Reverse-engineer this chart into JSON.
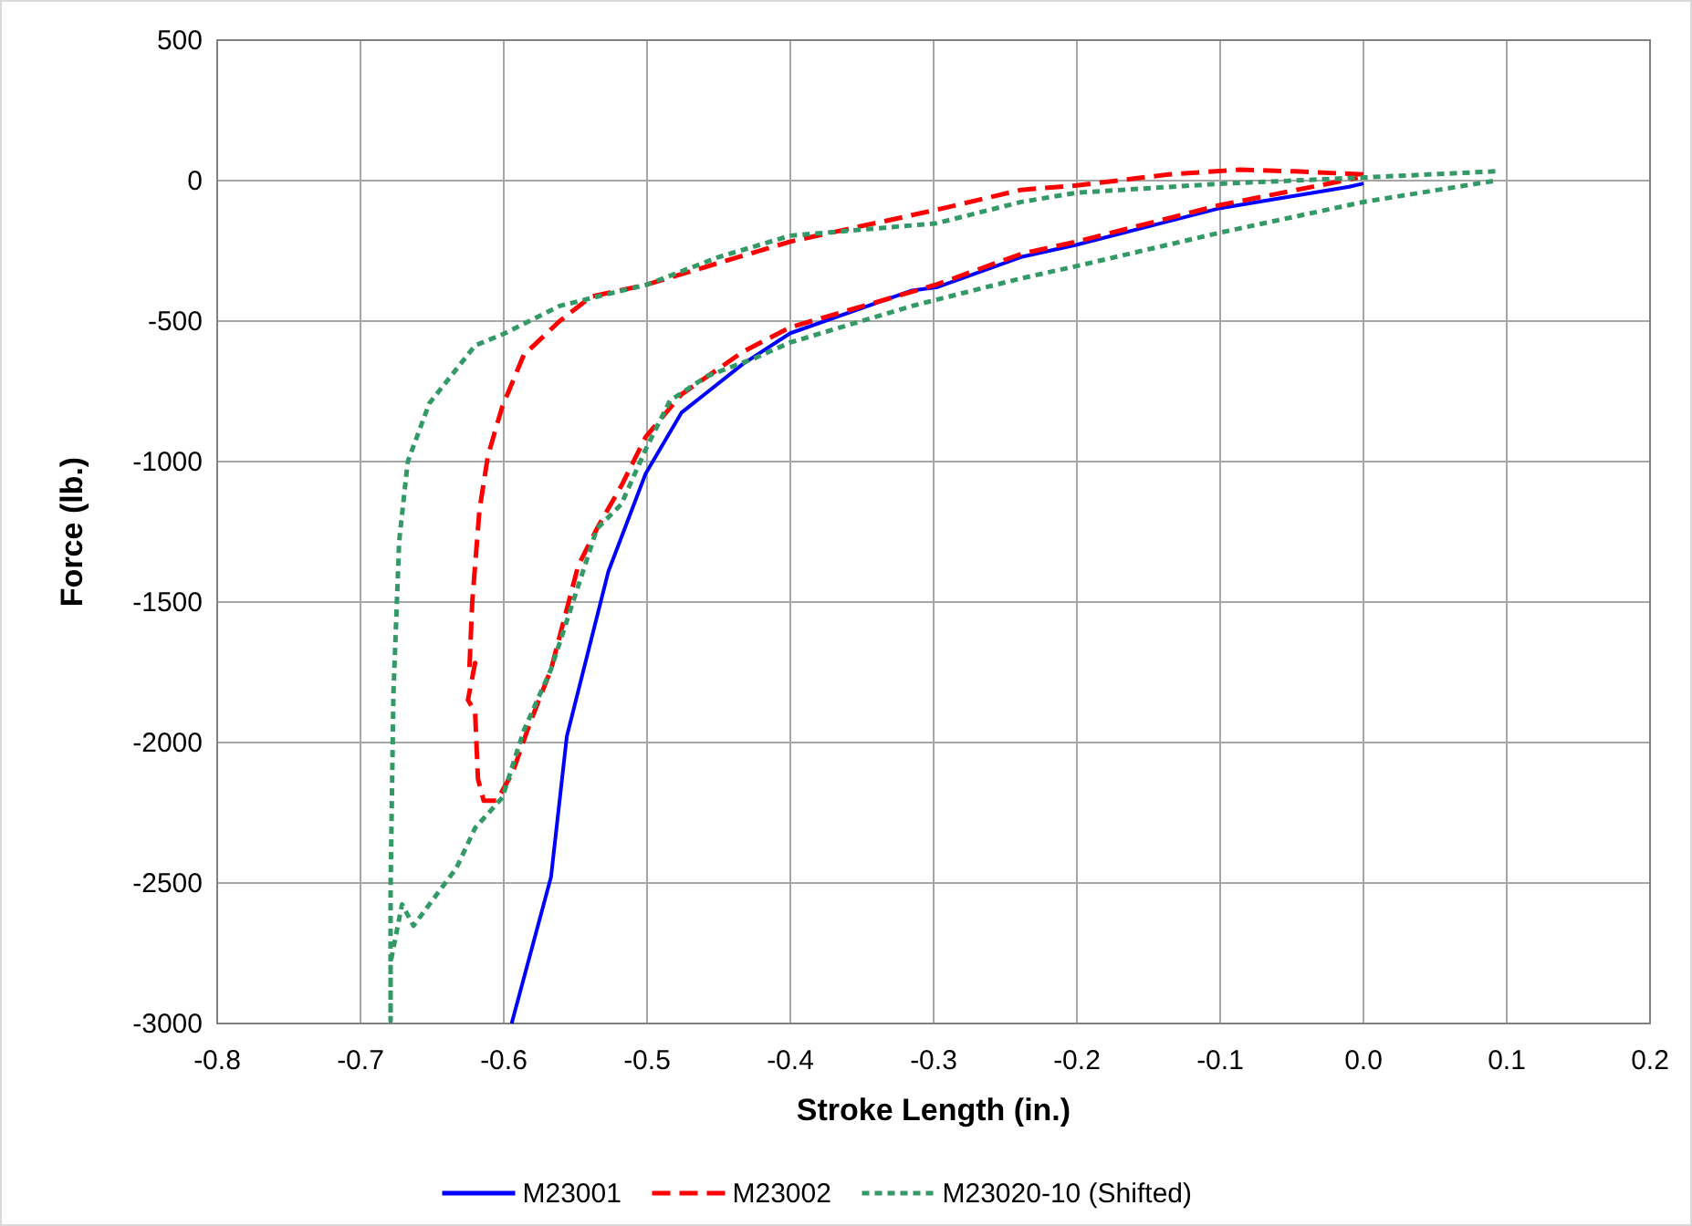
{
  "chart_data": {
    "type": "line",
    "xlabel": "Stroke Length (in.)",
    "ylabel": "Force (lb.)",
    "xlim": [
      -0.8,
      0.2
    ],
    "xticks": [
      {
        "value": -0.8,
        "label": "-0.8"
      },
      {
        "value": -0.7,
        "label": "-0.7"
      },
      {
        "value": -0.6,
        "label": "-0.6"
      },
      {
        "value": -0.5,
        "label": "-0.5"
      },
      {
        "value": -0.4,
        "label": "-0.4"
      },
      {
        "value": -0.3,
        "label": "-0.3"
      },
      {
        "value": -0.2,
        "label": "-0.2"
      },
      {
        "value": -0.1,
        "label": "-0.1"
      },
      {
        "value": 0,
        "label": "0.0"
      },
      {
        "value": 0.1,
        "label": "0.1"
      },
      {
        "value": 0.2,
        "label": "0.2"
      }
    ],
    "ylim": [
      -3000,
      500
    ],
    "yticks": [
      -3000,
      -2500,
      -2000,
      -1500,
      -1000,
      -500,
      0,
      500
    ],
    "grid": true,
    "legend": "bottom",
    "series": [
      {
        "name": "M23001",
        "color": "#0000ff",
        "line_style": "solid",
        "x": [
          -0.5945,
          -0.567,
          -0.556,
          -0.527,
          -0.501,
          -0.476,
          -0.433,
          -0.4,
          -0.315,
          -0.298,
          -0.239,
          -0.2,
          -0.1,
          -0.01,
          0
        ],
        "values": [
          -3000,
          -2478,
          -1978,
          -1391,
          -1043,
          -826,
          -652,
          -543,
          -391,
          -380,
          -272,
          -228,
          -98,
          -22,
          -10
        ]
      },
      {
        "name": "M23002",
        "color": "#ff0000",
        "line_style": "dashed",
        "x": [
          0,
          -0.048,
          -0.086,
          -0.136,
          -0.2,
          -0.239,
          -0.298,
          -0.4,
          -0.45,
          -0.5,
          -0.539,
          -0.561,
          -0.586,
          -0.601,
          -0.611,
          -0.617,
          -0.622,
          -0.624,
          -0.62,
          -0.625,
          -0.62,
          -0.618,
          -0.614,
          -0.605,
          -0.594,
          -0.582,
          -0.567,
          -0.548,
          -0.535,
          -0.518,
          -0.501,
          -0.476,
          -0.433,
          -0.4,
          -0.349,
          -0.298,
          -0.239,
          -0.2,
          -0.1,
          -0.004
        ],
        "values": [
          22,
          33,
          39,
          22,
          -17,
          -33,
          -104,
          -217,
          -293,
          -370,
          -413,
          -500,
          -620,
          -804,
          -978,
          -1174,
          -1500,
          -1739,
          -1717,
          -1848,
          -1891,
          -2130,
          -2207,
          -2207,
          -2109,
          -1935,
          -1739,
          -1370,
          -1239,
          -1087,
          -913,
          -761,
          -609,
          -522,
          -446,
          -370,
          -261,
          -217,
          -87,
          10
        ]
      },
      {
        "name": "M23020-10 (Shifted)",
        "color": "#339966",
        "line_style": "dotted",
        "x": [
          0.092,
          0,
          -0.1,
          -0.2,
          -0.239,
          -0.298,
          -0.4,
          -0.45,
          -0.5,
          -0.526,
          -0.561,
          -0.599,
          -0.62,
          -0.652,
          -0.667,
          -0.673,
          -0.677,
          -0.679,
          -0.679,
          -0.679,
          -0.671,
          -0.663,
          -0.633,
          -0.62,
          -0.601,
          -0.586,
          -0.567,
          -0.535,
          -0.518,
          -0.501,
          -0.484,
          -0.458,
          -0.424,
          -0.4,
          -0.315,
          -0.298,
          -0.239,
          -0.2,
          -0.1,
          0,
          0.092
        ],
        "values": [
          33,
          11,
          -11,
          -43,
          -76,
          -152,
          -196,
          -272,
          -370,
          -402,
          -446,
          -543,
          -587,
          -793,
          -1000,
          -1283,
          -1826,
          -2522,
          -2990,
          -2783,
          -2576,
          -2652,
          -2446,
          -2304,
          -2196,
          -1957,
          -1739,
          -1239,
          -1152,
          -957,
          -783,
          -696,
          -630,
          -576,
          -446,
          -424,
          -348,
          -304,
          -185,
          -76,
          0
        ]
      }
    ]
  }
}
